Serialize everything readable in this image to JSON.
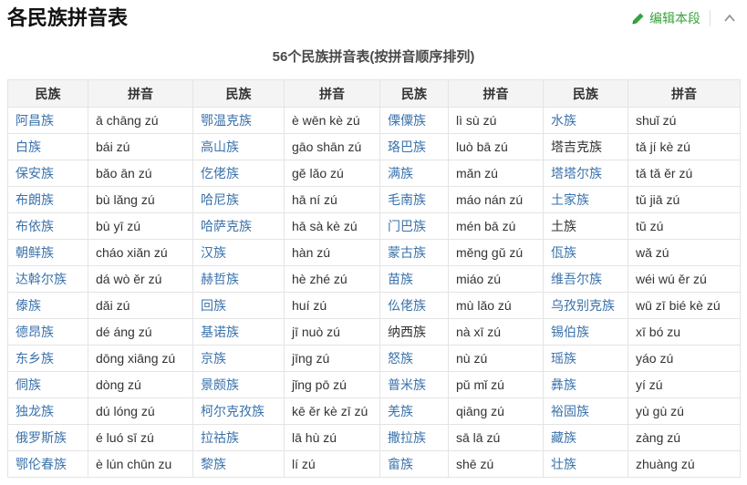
{
  "header": {
    "title": "各民族拼音表",
    "edit_label": "编辑本段",
    "edit_color": "#3aa23c"
  },
  "subtitle": "56个民族拼音表(按拼音顺序排列)",
  "colors": {
    "link_blue": "#3a72ab",
    "edit_green": "#3aa23c",
    "header_row_bg": "#f4f4f4",
    "table_border": "#e4e4e4"
  },
  "table": {
    "column_headers": [
      "民族",
      "拼音",
      "民族",
      "拼音",
      "民族",
      "拼音",
      "民族",
      "拼音"
    ],
    "rows": [
      [
        {
          "text": "阿昌族",
          "link": true
        },
        {
          "text": "ā chāng zú"
        },
        {
          "text": "鄂温克族",
          "link": true
        },
        {
          "text": "è wēn kè zú"
        },
        {
          "text": "傈僳族",
          "link": true
        },
        {
          "text": "lì sù zú"
        },
        {
          "text": "水族",
          "link": true
        },
        {
          "text": "shuǐ zú"
        }
      ],
      [
        {
          "text": "白族",
          "link": true
        },
        {
          "text": "bái zú"
        },
        {
          "text": "高山族",
          "link": true
        },
        {
          "text": "gāo shān zú"
        },
        {
          "text": "珞巴族",
          "link": true
        },
        {
          "text": "luò bā zú"
        },
        {
          "text": "塔吉克族",
          "link": false
        },
        {
          "text": "tǎ jí kè zú"
        }
      ],
      [
        {
          "text": "保安族",
          "link": true
        },
        {
          "text": "bǎo ān zú"
        },
        {
          "text": "仡佬族",
          "link": true
        },
        {
          "text": "gě lǎo zú"
        },
        {
          "text": "满族",
          "link": true
        },
        {
          "text": "mǎn zú"
        },
        {
          "text": "塔塔尔族",
          "link": true
        },
        {
          "text": "tǎ tǎ ěr zú"
        }
      ],
      [
        {
          "text": "布朗族",
          "link": true
        },
        {
          "text": "bù lǎng zú"
        },
        {
          "text": "哈尼族",
          "link": true
        },
        {
          "text": "hā ní zú"
        },
        {
          "text": "毛南族",
          "link": true
        },
        {
          "text": "máo nán zú"
        },
        {
          "text": "土家族",
          "link": true
        },
        {
          "text": "tǔ jiā zú"
        }
      ],
      [
        {
          "text": "布依族",
          "link": true
        },
        {
          "text": "bù yī zú"
        },
        {
          "text": "哈萨克族",
          "link": true
        },
        {
          "text": "hā sà kè zú"
        },
        {
          "text": "门巴族",
          "link": true
        },
        {
          "text": "mén bā zú"
        },
        {
          "text": "土族",
          "link": false
        },
        {
          "text": "tǔ zú"
        }
      ],
      [
        {
          "text": "朝鲜族",
          "link": true
        },
        {
          "text": "cháo xiǎn zú"
        },
        {
          "text": "汉族",
          "link": true
        },
        {
          "text": "hàn zú"
        },
        {
          "text": "蒙古族",
          "link": true
        },
        {
          "text": "měng gǔ zú"
        },
        {
          "text": "佤族",
          "link": true
        },
        {
          "text": "wǎ zú"
        }
      ],
      [
        {
          "text": "达斡尔族",
          "link": true
        },
        {
          "text": "dá wò ěr zú"
        },
        {
          "text": "赫哲族",
          "link": true
        },
        {
          "text": "hè zhé zú"
        },
        {
          "text": "苗族",
          "link": true
        },
        {
          "text": "miáo zú"
        },
        {
          "text": "维吾尔族",
          "link": true
        },
        {
          "text": "wéi wú ěr zú"
        }
      ],
      [
        {
          "text": "傣族",
          "link": true
        },
        {
          "text": "dǎi zú"
        },
        {
          "text": "回族",
          "link": true
        },
        {
          "text": "huí zú"
        },
        {
          "text": "仫佬族",
          "link": true
        },
        {
          "text": "mù lǎo zú"
        },
        {
          "text": "乌孜别克族",
          "link": true
        },
        {
          "text": "wū zī bié kè zú"
        }
      ],
      [
        {
          "text": "德昂族",
          "link": true
        },
        {
          "text": "dé áng zú"
        },
        {
          "text": "基诺族",
          "link": true
        },
        {
          "text": "jī nuò zú"
        },
        {
          "text": "纳西族",
          "link": false
        },
        {
          "text": "nà xī zú"
        },
        {
          "text": "锡伯族",
          "link": true
        },
        {
          "text": "xī bó zu"
        }
      ],
      [
        {
          "text": "东乡族",
          "link": true
        },
        {
          "text": "dōng xiāng zú"
        },
        {
          "text": "京族",
          "link": true
        },
        {
          "text": "jīng zú"
        },
        {
          "text": "怒族",
          "link": true
        },
        {
          "text": "nù zú"
        },
        {
          "text": "瑶族",
          "link": true
        },
        {
          "text": "yáo zú"
        }
      ],
      [
        {
          "text": "侗族",
          "link": true
        },
        {
          "text": "dòng zú"
        },
        {
          "text": "景颇族",
          "link": true
        },
        {
          "text": "jǐng pō zú"
        },
        {
          "text": "普米族",
          "link": true
        },
        {
          "text": "pǔ mǐ zú"
        },
        {
          "text": "彝族",
          "link": true
        },
        {
          "text": "yí zú"
        }
      ],
      [
        {
          "text": "独龙族",
          "link": true
        },
        {
          "text": "dú lóng zú"
        },
        {
          "text": "柯尔克孜族",
          "link": true
        },
        {
          "text": "kē ěr kè zī zú"
        },
        {
          "text": "羌族",
          "link": true
        },
        {
          "text": "qiāng zú"
        },
        {
          "text": "裕固族",
          "link": true
        },
        {
          "text": "yù gù zú"
        }
      ],
      [
        {
          "text": "俄罗斯族",
          "link": true
        },
        {
          "text": "é luó sī zú"
        },
        {
          "text": "拉祜族",
          "link": true
        },
        {
          "text": "lā hù zú"
        },
        {
          "text": "撒拉族",
          "link": true
        },
        {
          "text": "sā lā zú"
        },
        {
          "text": "藏族",
          "link": true
        },
        {
          "text": "zàng zú"
        }
      ],
      [
        {
          "text": "鄂伦春族",
          "link": true
        },
        {
          "text": "è lún chūn zu"
        },
        {
          "text": "黎族",
          "link": true
        },
        {
          "text": "lí zú"
        },
        {
          "text": "畲族",
          "link": true
        },
        {
          "text": "shē zú"
        },
        {
          "text": "壮族",
          "link": true
        },
        {
          "text": "zhuàng zú"
        }
      ]
    ]
  }
}
